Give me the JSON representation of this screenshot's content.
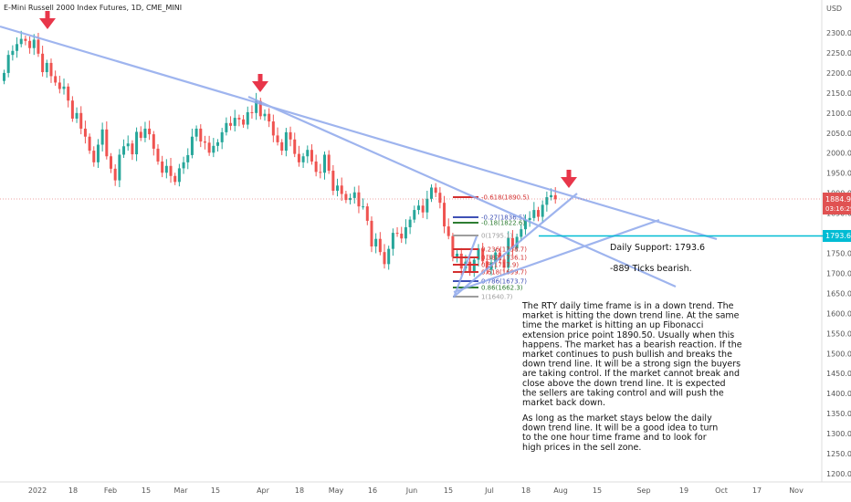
{
  "header": {
    "title": "E-Mini Russell 2000 Index Futures, 1D, CME_MINI",
    "currency": "USD"
  },
  "price_badge": {
    "price": "1884.9",
    "countdown": "03:16:29",
    "color": "#e05252"
  },
  "support_badge": {
    "price": "1793.6",
    "color": "#00bcd4"
  },
  "annotations": {
    "support": "Daily Support: 1793.6",
    "ticks": "-889 Ticks bearish.",
    "para1": [
      "The RTY daily time frame is in a down trend. The",
      "market is hitting the down trend line. At the same",
      "time the market is hitting an up Fibonacci",
      "extension price point 1890.50.  Usually when this",
      "happens. The market has a bearish reaction. If the",
      "market continues to push bullish and breaks the",
      "down trend line. It will be a strong sign the buyers",
      "are taking control. If the market cannot break and",
      "close above the down trend line. It is expected",
      "the sellers are taking control and will push the",
      "market back down."
    ],
    "para2": [
      "As long as the market stays below the daily",
      "down trend line. It will be a good idea to turn",
      "to the one hour time frame and to look for",
      "high prices in the sell zone."
    ]
  },
  "fib_levels": [
    {
      "label": "-0.618(1890.5)",
      "value": 1890.5,
      "color": "#d32f2f"
    },
    {
      "label": "-0.27(1836.5)",
      "value": 1836.5,
      "color": "#3f51b5"
    },
    {
      "label": "-0.18(1822.6)",
      "value": 1822.6,
      "color": "#2e7d32"
    },
    {
      "label": "0(1795.1)",
      "value": 1795.1,
      "color": "#9e9e9e"
    },
    {
      "label": "0.236(1758.7)",
      "value": 1758.7,
      "color": "#d32f2f"
    },
    {
      "label": "0.382(1736.1)",
      "value": 1736.1,
      "color": "#d32f2f"
    },
    {
      "label": "0.5(1717.9)",
      "value": 1717.9,
      "color": "#d32f2f"
    },
    {
      "label": "0.618(1699.7)",
      "value": 1699.7,
      "color": "#d32f2f"
    },
    {
      "label": "0.786(1673.7)",
      "value": 1673.7,
      "color": "#3f51b5"
    },
    {
      "label": "0.86(1662.3)",
      "value": 1662.3,
      "color": "#2e7d32"
    },
    {
      "label": "1(1640.7)",
      "value": 1640.7,
      "color": "#9e9e9e"
    }
  ],
  "chart_data": {
    "type": "candlestick",
    "y_ticks": [
      2300,
      2250,
      2200,
      2150,
      2100,
      2050,
      2000,
      1950,
      1900,
      1850,
      1800,
      1750,
      1700,
      1650,
      1600,
      1550,
      1500,
      1450,
      1400,
      1350,
      1300,
      1250,
      1200
    ],
    "y_range": [
      1180,
      2370
    ],
    "x_ticks": [
      "2022",
      "18",
      "Feb",
      "15",
      "Mar",
      "15",
      "Apr",
      "18",
      "May",
      "16",
      "Jun",
      "15",
      "Jul",
      "18",
      "Aug",
      "15",
      "Sep",
      "19",
      "Oct",
      "17",
      "Nov"
    ],
    "last_price": 1884.9,
    "daily_support": 1793.6,
    "fib_extension_target": 1890.5,
    "series": [
      {
        "name": "",
        "values": [
          2200,
          2245,
          2255,
          2272,
          2285,
          2280,
          2262,
          2283,
          2248,
          2202,
          2225,
          2192,
          2176,
          2160,
          2166,
          2131,
          2086,
          2100,
          2061,
          2041,
          2006,
          1977,
          2021,
          2059,
          1992,
          1961,
          1932,
          1996,
          2017,
          2024,
          1997,
          2053,
          2038,
          2061,
          2047,
          2011,
          1979,
          1951,
          1968,
          1943,
          1928,
          1962,
          1977,
          1995,
          2041,
          2061,
          2029,
          2026,
          2001,
          2018,
          2027,
          2052,
          2075,
          2068,
          2088,
          2084,
          2071,
          2102,
          2100,
          2130,
          2092,
          2098,
          2079,
          2044,
          2027,
          2006,
          2052,
          2034,
          1998,
          1977,
          1992,
          2008,
          1979,
          1953,
          1951,
          1996,
          1956,
          1906,
          1919,
          1898,
          1883,
          1888,
          1902,
          1867,
          1867,
          1831,
          1767,
          1786,
          1753,
          1723,
          1761,
          1801,
          1799,
          1787,
          1815,
          1834,
          1858,
          1869,
          1852,
          1886,
          1914,
          1901,
          1876,
          1817,
          1793,
          1741,
          1749,
          1712,
          1729,
          1705,
          1734,
          1762,
          1730,
          1709,
          1727,
          1752,
          1733,
          1714,
          1788,
          1762,
          1791,
          1810,
          1833,
          1838,
          1858,
          1841,
          1871,
          1890,
          1895,
          1884.9
        ]
      }
    ]
  }
}
